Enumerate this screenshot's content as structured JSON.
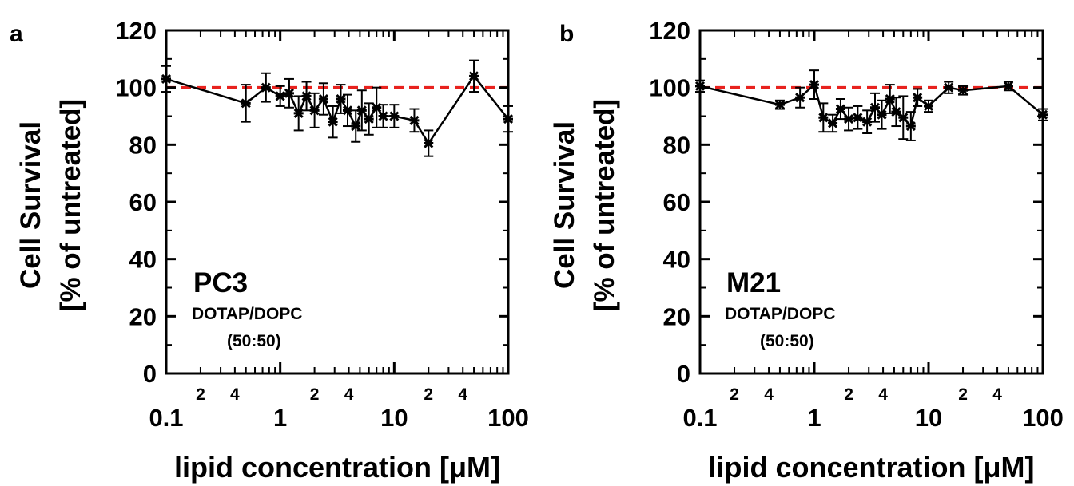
{
  "chart_data": [
    {
      "type": "line",
      "panel_label": "a",
      "xscale": "log",
      "xlim": [
        0.1,
        100
      ],
      "ylim": [
        0,
        120
      ],
      "xlabel": "lipid concentration [μM]",
      "ylabel_line1": "Cell Survival",
      "ylabel_line2": "[% of untreated]",
      "x_major_ticks": [
        {
          "v": 0.1,
          "label": "0.1"
        },
        {
          "v": 1,
          "label": "1"
        },
        {
          "v": 10,
          "label": "10"
        },
        {
          "v": 100,
          "label": "100"
        }
      ],
      "x_minor_labels": [
        {
          "v": 0.2,
          "label": "2"
        },
        {
          "v": 0.4,
          "label": "4"
        },
        {
          "v": 2,
          "label": "2"
        },
        {
          "v": 4,
          "label": "4"
        },
        {
          "v": 20,
          "label": "2"
        },
        {
          "v": 40,
          "label": "4"
        }
      ],
      "y_ticks": [
        0,
        20,
        40,
        60,
        80,
        100,
        120
      ],
      "reference_line": {
        "y": 100,
        "color": "#e8221e",
        "style": "dashed"
      },
      "annotation": {
        "line1": "PC3",
        "line2": "DOTAP/DOPC",
        "line3": "(50:50)"
      },
      "series": [
        {
          "x": [
            0.1,
            0.5,
            0.75,
            1.0,
            1.2,
            1.45,
            1.7,
            2.0,
            2.4,
            2.9,
            3.4,
            3.9,
            4.6,
            5.2,
            6.0,
            7.0,
            8.0,
            10.0,
            15.0,
            20.0,
            50.0,
            100.0
          ],
          "y": [
            103,
            94.5,
            100,
            97,
            98,
            91,
            97,
            92,
            96,
            88,
            96,
            92,
            86.5,
            92,
            89,
            93,
            90,
            90,
            88.5,
            80.5,
            104,
            89
          ],
          "err": [
            4.5,
            6.5,
            5,
            3.5,
            5,
            6,
            5,
            6,
            5.5,
            5.5,
            5,
            5.5,
            5.5,
            7,
            5.5,
            7,
            4,
            4,
            4,
            4.5,
            5.5,
            4.5
          ]
        }
      ]
    },
    {
      "type": "line",
      "panel_label": "b",
      "xscale": "log",
      "xlim": [
        0.1,
        100
      ],
      "ylim": [
        0,
        120
      ],
      "xlabel": "lipid concentration [μM]",
      "ylabel_line1": "Cell Survival",
      "ylabel_line2": "[% of untreated]",
      "x_major_ticks": [
        {
          "v": 0.1,
          "label": "0.1"
        },
        {
          "v": 1,
          "label": "1"
        },
        {
          "v": 10,
          "label": "10"
        },
        {
          "v": 100,
          "label": "100"
        }
      ],
      "x_minor_labels": [
        {
          "v": 0.2,
          "label": "2"
        },
        {
          "v": 0.4,
          "label": "4"
        },
        {
          "v": 2,
          "label": "2"
        },
        {
          "v": 4,
          "label": "4"
        },
        {
          "v": 20,
          "label": "2"
        },
        {
          "v": 40,
          "label": "4"
        }
      ],
      "y_ticks": [
        0,
        20,
        40,
        60,
        80,
        100,
        120
      ],
      "reference_line": {
        "y": 100,
        "color": "#e8221e",
        "style": "dashed"
      },
      "annotation": {
        "line1": "M21",
        "line2": "DOTAP/DOPC",
        "line3": "(50:50)"
      },
      "series": [
        {
          "x": [
            0.1,
            0.5,
            0.75,
            1.0,
            1.2,
            1.45,
            1.7,
            2.0,
            2.4,
            2.9,
            3.4,
            3.9,
            4.6,
            5.2,
            6.0,
            7.0,
            8.0,
            10.0,
            15.0,
            20.0,
            50.0,
            100.0
          ],
          "y": [
            100.5,
            94,
            96.5,
            101,
            89.5,
            87.5,
            92.5,
            89,
            89.5,
            88,
            93,
            90.5,
            96,
            91.5,
            89.5,
            86.5,
            96.5,
            93.5,
            100,
            99,
            100.5,
            90.5
          ],
          "err": [
            2,
            1.5,
            3.5,
            5,
            5,
            3,
            3.5,
            4,
            4,
            4,
            5,
            5,
            5,
            5,
            7.5,
            5,
            3,
            2,
            2,
            1.5,
            1.5,
            2
          ]
        }
      ]
    }
  ]
}
